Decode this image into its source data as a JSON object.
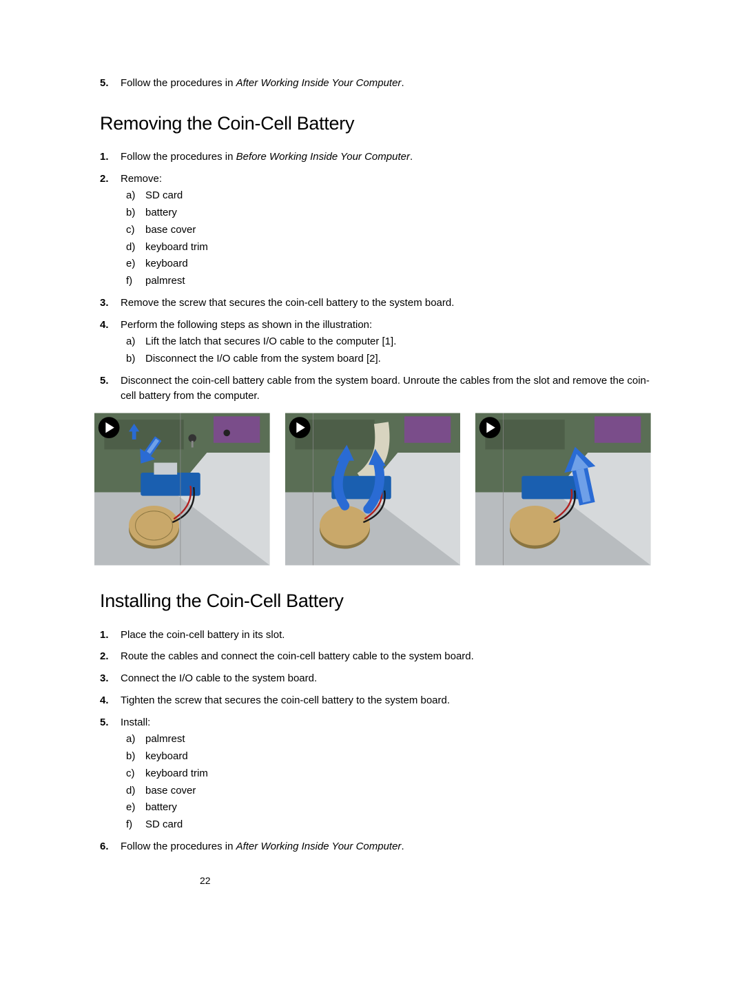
{
  "page_number": "22",
  "intro_step": {
    "num": "5.",
    "prefix": "Follow the procedures in ",
    "italic": "After Working Inside Your Computer",
    "suffix": "."
  },
  "section1": {
    "heading": "Removing the Coin-Cell Battery",
    "steps": [
      {
        "num": "1.",
        "prefix": "Follow the procedures in ",
        "italic": "Before Working Inside Your Computer",
        "suffix": "."
      },
      {
        "num": "2.",
        "text": "Remove:",
        "sub": [
          {
            "letter": "a)",
            "text": "SD card"
          },
          {
            "letter": "b)",
            "text": "battery"
          },
          {
            "letter": "c)",
            "text": "base cover"
          },
          {
            "letter": "d)",
            "text": "keyboard trim"
          },
          {
            "letter": "e)",
            "text": "keyboard"
          },
          {
            "letter": "f)",
            "text": "palmrest"
          }
        ]
      },
      {
        "num": "3.",
        "text": "Remove the screw that secures the coin-cell battery to the system board."
      },
      {
        "num": "4.",
        "text": "Perform the following steps as shown in the illustration:",
        "sub": [
          {
            "letter": "a)",
            "text": "Lift the latch that secures I/O cable to the computer [1]."
          },
          {
            "letter": "b)",
            "text": "Disconnect the I/O cable from the system board [2]."
          }
        ]
      },
      {
        "num": "5.",
        "text": "Disconnect the coin-cell battery cable from the system board. Unroute the cables from the slot and remove the coin-cell battery from the computer."
      }
    ]
  },
  "section2": {
    "heading": "Installing the Coin-Cell Battery",
    "steps": [
      {
        "num": "1.",
        "text": "Place the coin-cell battery in its slot."
      },
      {
        "num": "2.",
        "text": "Route the cables and connect the coin-cell battery cable to the system board."
      },
      {
        "num": "3.",
        "text": "Connect the I/O cable to the system board."
      },
      {
        "num": "4.",
        "text": "Tighten the screw that secures the coin-cell battery to the system board."
      },
      {
        "num": "5.",
        "text": "Install:",
        "sub": [
          {
            "letter": "a)",
            "text": "palmrest"
          },
          {
            "letter": "b)",
            "text": "keyboard"
          },
          {
            "letter": "c)",
            "text": "keyboard trim"
          },
          {
            "letter": "d)",
            "text": "base cover"
          },
          {
            "letter": "e)",
            "text": "battery"
          },
          {
            "letter": "f)",
            "text": "SD card"
          }
        ]
      },
      {
        "num": "6.",
        "prefix": "Follow the procedures in ",
        "italic": "After Working Inside Your Computer",
        "suffix": "."
      }
    ]
  },
  "figure": {
    "board_color": "#5a6e55",
    "board_highlight": "#7a4d8a",
    "case_color": "#b8bcbf",
    "case_light": "#d6d9db",
    "coin_color": "#c9a86a",
    "coin_edge": "#8a7540",
    "pcb_color": "#1a5fb0",
    "wire_red": "#b02020",
    "wire_black": "#1a1a1a",
    "arrow_blue": "#2a6bd4",
    "arrow_light": "#6fa0e8",
    "play_bg": "#000000",
    "play_fg": "#ffffff",
    "connector_silver": "#c8cdd2"
  }
}
